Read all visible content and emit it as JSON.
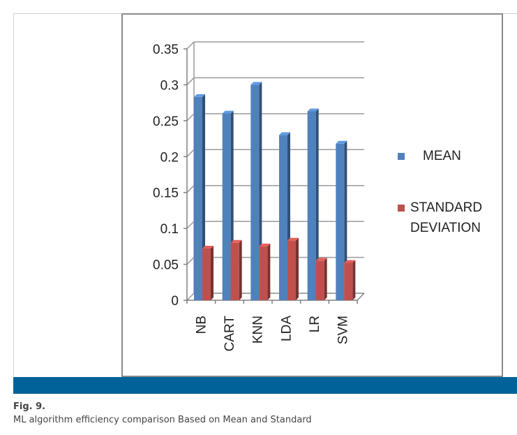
{
  "figure": {
    "label": "Fig. 9.",
    "caption": "ML algorithm efficiency comparison Based on Mean and Standard",
    "band_color": "#006298"
  },
  "chart_data": {
    "type": "bar",
    "categories": [
      "NB",
      "CART",
      "KNN",
      "LDA",
      "LR",
      "SVM"
    ],
    "series": [
      {
        "name": "MEAN",
        "color": "#4f81bd",
        "values": [
          0.283,
          0.26,
          0.3,
          0.23,
          0.263,
          0.218
        ]
      },
      {
        "name": "STANDARD DEVIATION",
        "color": "#c0504d",
        "values": [
          0.072,
          0.08,
          0.075,
          0.083,
          0.055,
          0.052
        ]
      }
    ],
    "ylim": [
      0,
      0.35
    ],
    "yticks": [
      "0",
      "0.05",
      "0.1",
      "0.15",
      "0.2",
      "0.25",
      "0.3",
      "0.35"
    ],
    "grid": true,
    "legend": "right",
    "style": "3d-clustered-column"
  }
}
